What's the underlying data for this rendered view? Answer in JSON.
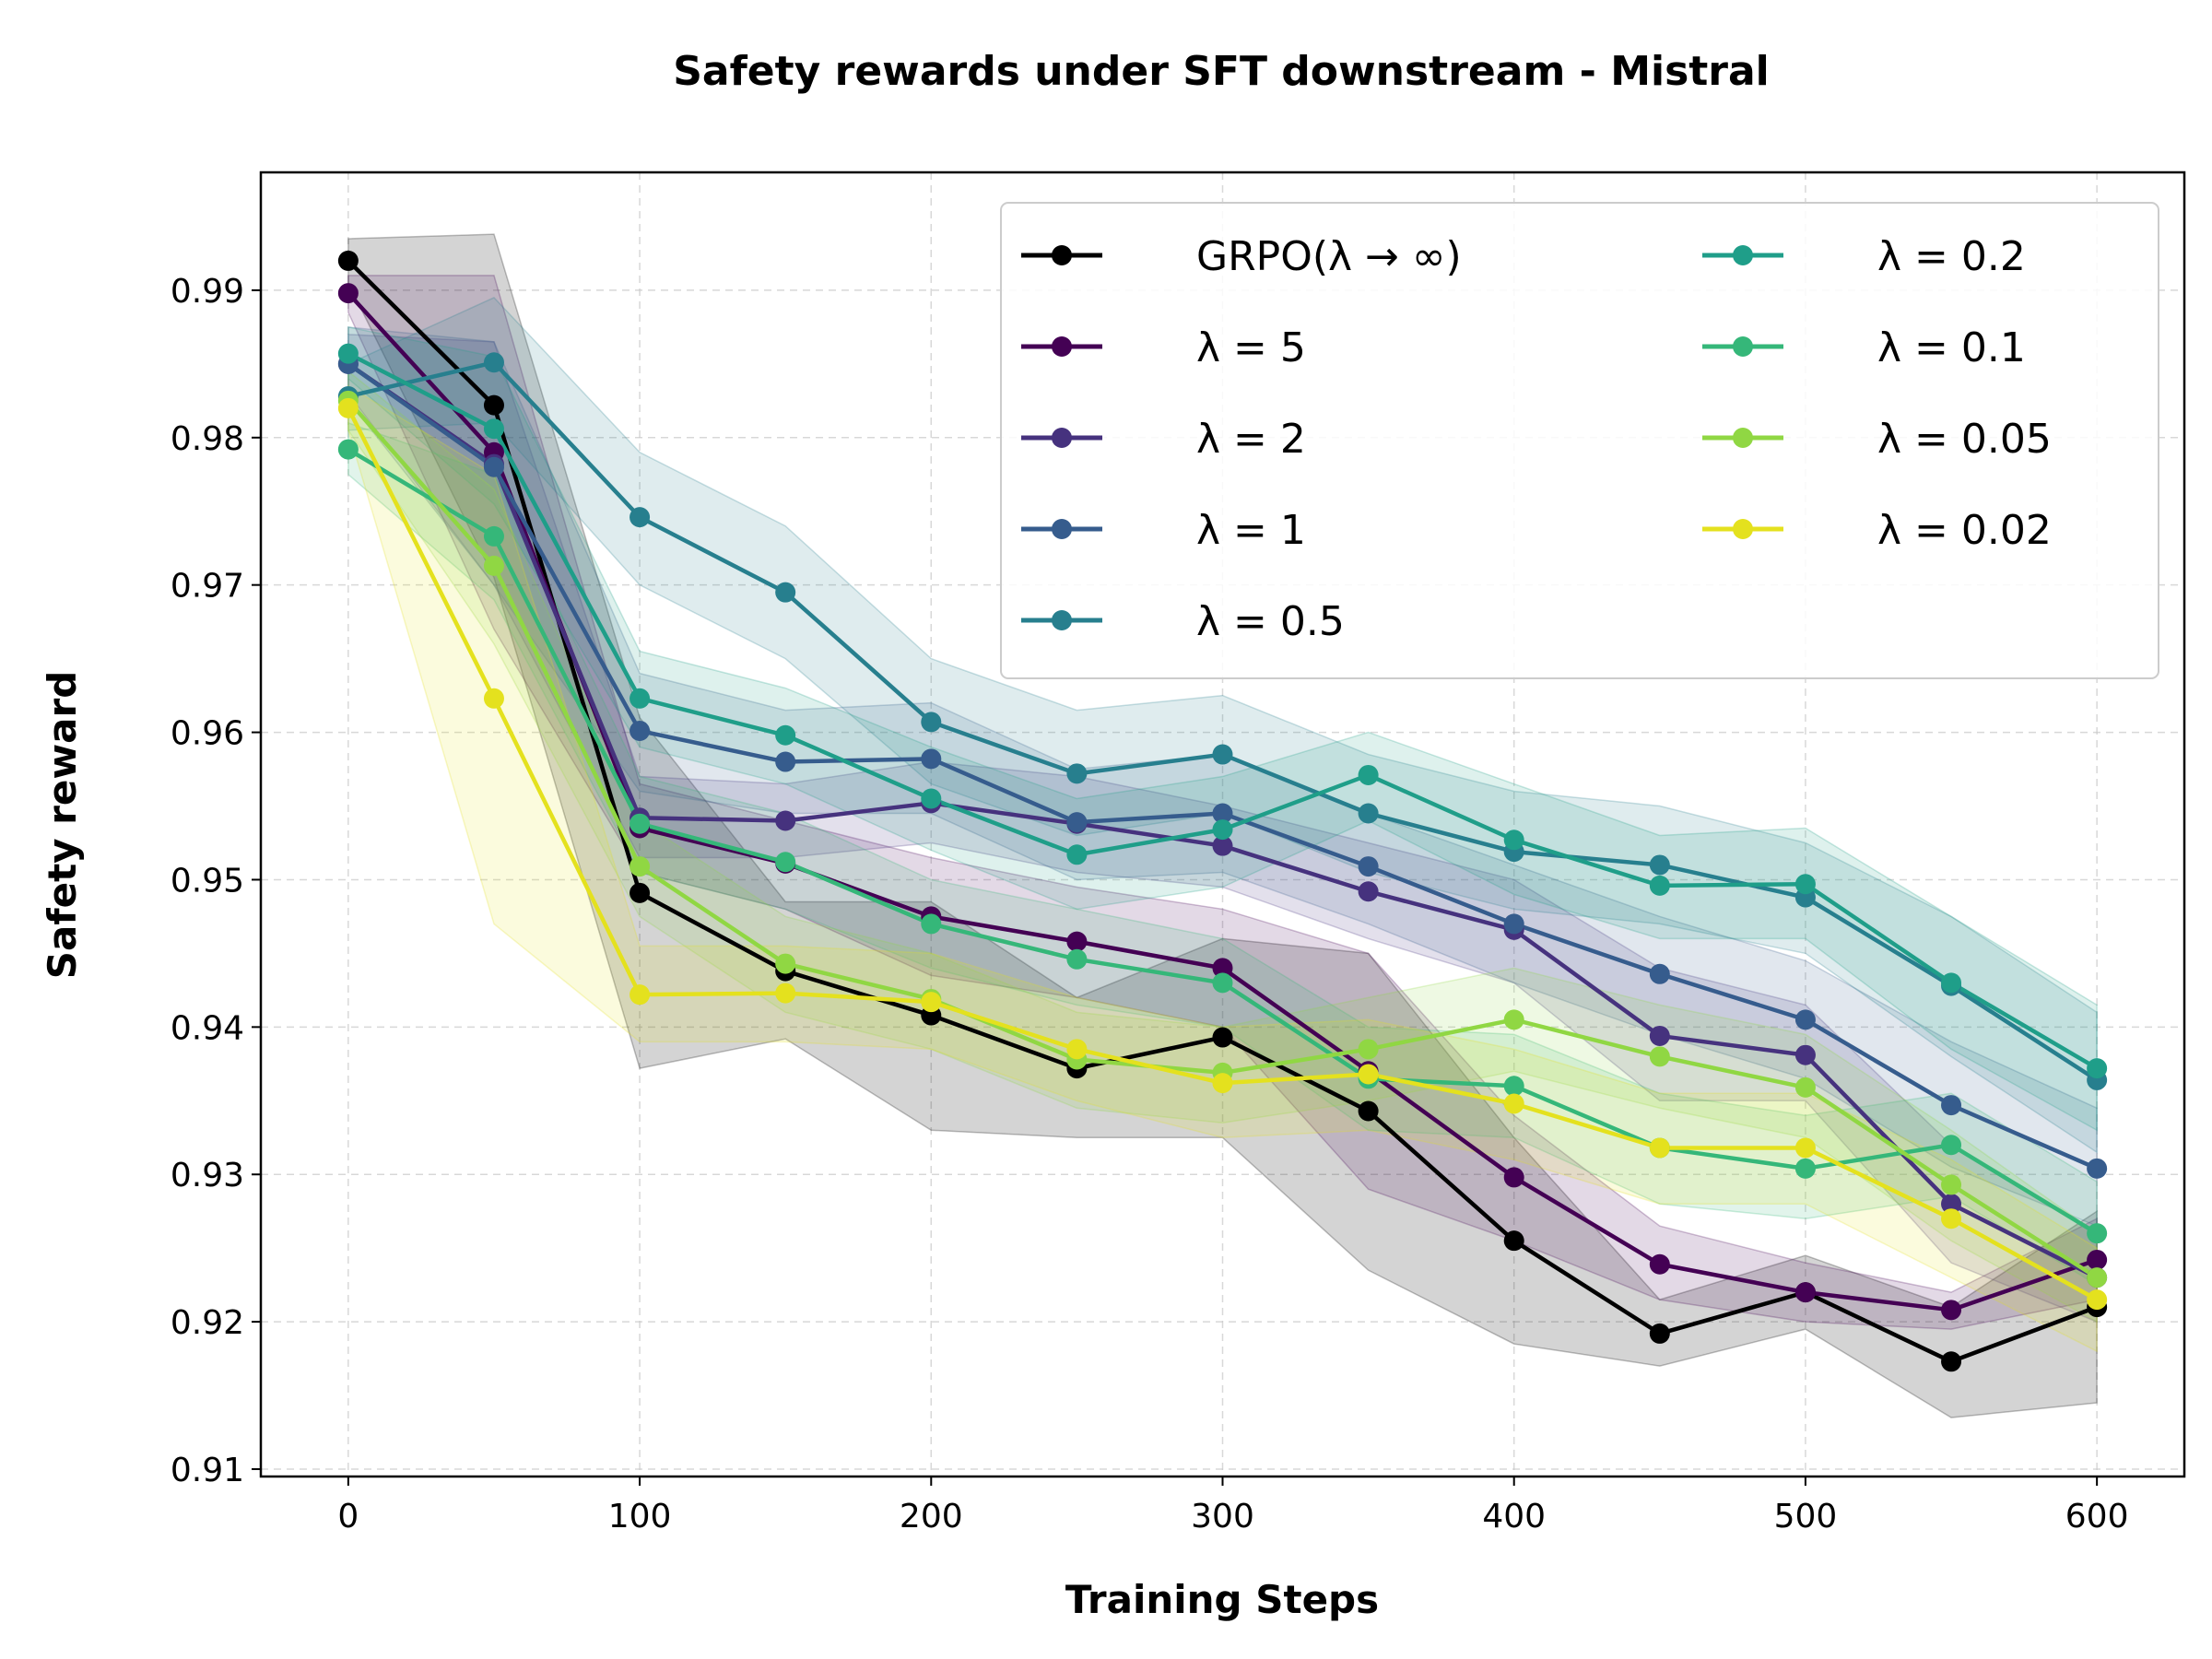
{
  "chart_data": {
    "type": "line",
    "title": "Safety rewards under SFT downstream - Mistral",
    "xlabel": "Training Steps",
    "ylabel": "Safety reward",
    "xlim": [
      -30,
      630
    ],
    "ylim": [
      0.9095,
      0.998
    ],
    "xticks": [
      0,
      100,
      200,
      300,
      400,
      500,
      600
    ],
    "xtick_labels": [
      "0",
      "100",
      "200",
      "300",
      "400",
      "500",
      "600"
    ],
    "yticks": [
      0.91,
      0.92,
      0.93,
      0.94,
      0.95,
      0.96,
      0.97,
      0.98,
      0.99
    ],
    "ytick_labels": [
      "0.91",
      "0.92",
      "0.93",
      "0.94",
      "0.95",
      "0.96",
      "0.97",
      "0.98",
      "0.99"
    ],
    "grid": true,
    "legend_position": "top-right",
    "legend_columns": 2,
    "x": [
      0,
      50,
      100,
      150,
      200,
      250,
      300,
      350,
      400,
      450,
      500,
      550,
      600
    ],
    "series": [
      {
        "name": "GRPO(λ → ∞)",
        "color": "#000000",
        "values": [
          0.992,
          0.9822,
          0.9491,
          0.9438,
          0.9408,
          0.9372,
          0.9393,
          0.9343,
          0.9255,
          0.9192,
          0.922,
          0.9173,
          0.921
        ],
        "lower": [
          0.9905,
          0.9705,
          0.9372,
          0.9392,
          0.933,
          0.9325,
          0.9325,
          0.9235,
          0.9185,
          0.917,
          0.9195,
          0.9135,
          0.9145
        ],
        "upper": [
          0.9935,
          0.9938,
          0.961,
          0.9485,
          0.9485,
          0.942,
          0.946,
          0.945,
          0.9325,
          0.9215,
          0.9245,
          0.921,
          0.9275
        ]
      },
      {
        "name": "λ = 5",
        "color": "#440154",
        "values": [
          0.9898,
          0.979,
          0.9535,
          0.9511,
          0.9475,
          0.9458,
          0.944,
          0.937,
          0.9298,
          0.9239,
          0.922,
          0.9208,
          0.9242
        ],
        "lower": [
          0.9885,
          0.967,
          0.9505,
          0.948,
          0.9435,
          0.942,
          0.94,
          0.929,
          0.9255,
          0.9215,
          0.92,
          0.9195,
          0.9215
        ],
        "upper": [
          0.991,
          0.991,
          0.9565,
          0.954,
          0.9515,
          0.9495,
          0.948,
          0.945,
          0.934,
          0.9265,
          0.924,
          0.922,
          0.927
        ]
      },
      {
        "name": "λ = 2",
        "color": "#46327e",
        "values": [
          0.985,
          0.9782,
          0.9542,
          0.954,
          0.9552,
          0.9538,
          0.9523,
          0.9492,
          0.9466,
          0.9394,
          0.9381,
          0.928,
          0.923
        ],
        "lower": [
          0.983,
          0.97,
          0.9515,
          0.9515,
          0.9525,
          0.9505,
          0.9495,
          0.946,
          0.943,
          0.935,
          0.935,
          0.924,
          0.92
        ],
        "upper": [
          0.987,
          0.9865,
          0.957,
          0.9565,
          0.958,
          0.957,
          0.955,
          0.9525,
          0.95,
          0.944,
          0.9415,
          0.932,
          0.926
        ]
      },
      {
        "name": "λ = 1",
        "color": "#365c8d",
        "values": [
          0.985,
          0.978,
          0.9601,
          0.958,
          0.9582,
          0.9539,
          0.9545,
          0.9509,
          0.947,
          0.9436,
          0.9405,
          0.9347,
          0.9304
        ],
        "lower": [
          0.9825,
          0.97,
          0.956,
          0.9545,
          0.9545,
          0.95,
          0.9505,
          0.947,
          0.943,
          0.9395,
          0.9365,
          0.9305,
          0.9265
        ],
        "upper": [
          0.9875,
          0.9865,
          0.964,
          0.9615,
          0.962,
          0.9575,
          0.9585,
          0.9545,
          0.951,
          0.9475,
          0.9445,
          0.939,
          0.9345
        ]
      },
      {
        "name": "λ = 0.5",
        "color": "#277f8e",
        "values": [
          0.9828,
          0.9851,
          0.9746,
          0.9695,
          0.9607,
          0.9572,
          0.9585,
          0.9545,
          0.9519,
          0.951,
          0.9488,
          0.9428,
          0.9364
        ],
        "lower": [
          0.9805,
          0.981,
          0.97,
          0.965,
          0.9565,
          0.953,
          0.9545,
          0.9505,
          0.948,
          0.947,
          0.945,
          0.938,
          0.9315
        ],
        "upper": [
          0.985,
          0.9895,
          0.979,
          0.974,
          0.965,
          0.9615,
          0.9625,
          0.9585,
          0.956,
          0.955,
          0.9525,
          0.9475,
          0.941
        ]
      },
      {
        "name": "λ = 0.2",
        "color": "#1f9e89",
        "values": [
          0.9857,
          0.9806,
          0.9623,
          0.9598,
          0.9555,
          0.9517,
          0.9534,
          0.9571,
          0.9527,
          0.9496,
          0.9497,
          0.943,
          0.9372
        ],
        "lower": [
          0.984,
          0.9755,
          0.959,
          0.9565,
          0.952,
          0.948,
          0.9495,
          0.954,
          0.949,
          0.946,
          0.946,
          0.9385,
          0.933
        ],
        "upper": [
          0.9875,
          0.9855,
          0.9655,
          0.963,
          0.959,
          0.9555,
          0.957,
          0.96,
          0.9565,
          0.953,
          0.9535,
          0.9475,
          0.9415
        ]
      },
      {
        "name": "λ = 0.1",
        "color": "#35b779",
        "values": [
          0.9792,
          0.9733,
          0.9538,
          0.9512,
          0.947,
          0.9446,
          0.943,
          0.9365,
          0.936,
          0.9318,
          0.9304,
          0.932,
          0.926
        ],
        "lower": [
          0.9775,
          0.969,
          0.9505,
          0.948,
          0.944,
          0.9415,
          0.94,
          0.933,
          0.9325,
          0.928,
          0.927,
          0.9285,
          0.9225
        ],
        "upper": [
          0.981,
          0.9775,
          0.957,
          0.9545,
          0.95,
          0.948,
          0.946,
          0.94,
          0.9395,
          0.9355,
          0.934,
          0.9355,
          0.9295
        ]
      },
      {
        "name": "λ = 0.05",
        "color": "#90d743",
        "values": [
          0.9825,
          0.9713,
          0.9509,
          0.9443,
          0.9419,
          0.9378,
          0.9369,
          0.9385,
          0.9405,
          0.938,
          0.9359,
          0.9293,
          0.923
        ],
        "lower": [
          0.9805,
          0.966,
          0.9475,
          0.941,
          0.9385,
          0.9345,
          0.9335,
          0.935,
          0.937,
          0.9345,
          0.9325,
          0.9255,
          0.92
        ],
        "upper": [
          0.9845,
          0.9765,
          0.954,
          0.9475,
          0.945,
          0.941,
          0.94,
          0.942,
          0.944,
          0.9415,
          0.9395,
          0.933,
          0.926
        ]
      },
      {
        "name": "λ = 0.02",
        "color": "#e4e11e",
        "values": [
          0.982,
          0.9623,
          0.9422,
          0.9423,
          0.9417,
          0.9385,
          0.9362,
          0.9368,
          0.9348,
          0.9318,
          0.9318,
          0.927,
          0.9215
        ],
        "lower": [
          0.9805,
          0.947,
          0.939,
          0.939,
          0.9385,
          0.935,
          0.9325,
          0.933,
          0.931,
          0.928,
          0.928,
          0.923,
          0.918
        ],
        "upper": [
          0.9835,
          0.9775,
          0.9455,
          0.9455,
          0.945,
          0.942,
          0.94,
          0.9405,
          0.9385,
          0.9355,
          0.9355,
          0.931,
          0.925
        ]
      }
    ]
  }
}
